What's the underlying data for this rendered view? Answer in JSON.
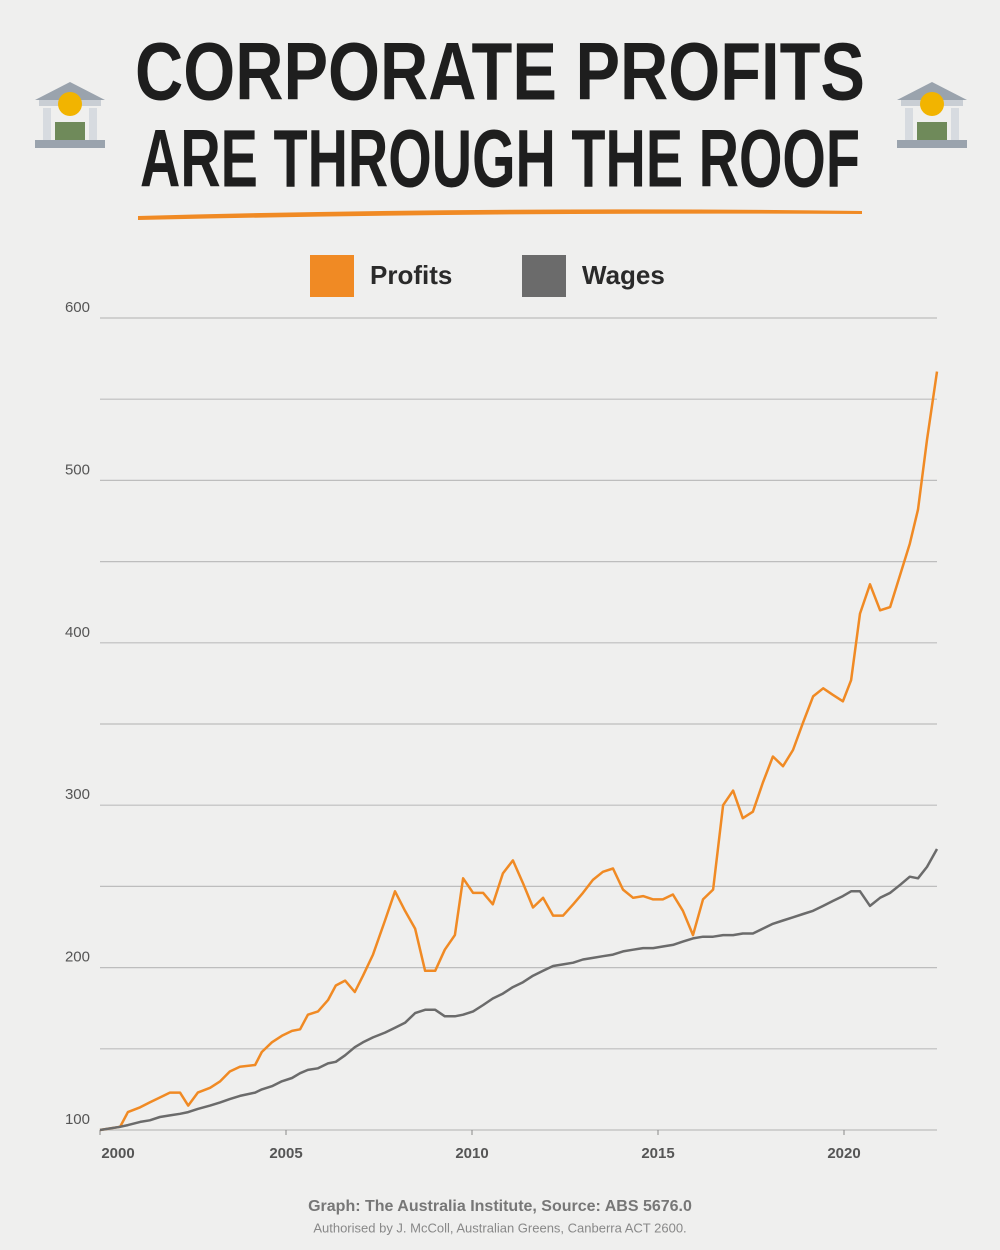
{
  "chart_data": {
    "type": "line",
    "title": [
      "CORPORATE PROFITS",
      "ARE THROUGH THE ROOF"
    ],
    "source": "Graph: The Australia Institute, Source: ABS 5676.0",
    "authorisation": "Authorised by J. McColl, Australian Greens, Canberra ACT 2600.",
    "x": [
      2000.0,
      2000.54,
      2000.75,
      2001.08,
      2001.34,
      2001.61,
      2001.88,
      2002.15,
      2002.37,
      2002.63,
      2002.96,
      2003.23,
      2003.49,
      2003.76,
      2004.17,
      2004.35,
      2004.62,
      2004.89,
      2005.16,
      2005.38,
      2005.59,
      2005.86,
      2006.13,
      2006.34,
      2006.59,
      2006.85,
      2007.07,
      2007.34,
      2007.66,
      2007.93,
      2008.2,
      2008.47,
      2008.74,
      2009.01,
      2009.27,
      2009.54,
      2009.76,
      2010.03,
      2010.3,
      2010.56,
      2010.83,
      2011.1,
      2011.37,
      2011.64,
      2011.91,
      2012.18,
      2012.45,
      2012.72,
      2012.98,
      2013.25,
      2013.52,
      2013.79,
      2014.06,
      2014.33,
      2014.6,
      2014.87,
      2015.13,
      2015.4,
      2015.67,
      2015.94,
      2016.21,
      2016.48,
      2016.75,
      2017.02,
      2017.28,
      2017.55,
      2017.82,
      2018.09,
      2018.36,
      2018.63,
      2018.9,
      2019.17,
      2019.44,
      2019.7,
      2019.97,
      2020.19,
      2020.43,
      2020.7,
      2020.97,
      2021.24,
      2021.51,
      2021.77,
      2021.99,
      2022.23,
      2022.5
    ],
    "series": [
      {
        "name": "Profits",
        "color": "#f08a24",
        "values": [
          100,
          102,
          111,
          114,
          117,
          120,
          123,
          123,
          115,
          123,
          126,
          130,
          136,
          139,
          140,
          148,
          154,
          158,
          161,
          162,
          171,
          173,
          180,
          189,
          192,
          185,
          195,
          208,
          229,
          247,
          235,
          224,
          198,
          198,
          211,
          220,
          255,
          246,
          246,
          239,
          258,
          266,
          252,
          237,
          243,
          232,
          232,
          239,
          246,
          254,
          259,
          261,
          248,
          243,
          244,
          242,
          242,
          245,
          235,
          220,
          242,
          248,
          300,
          309,
          292,
          296,
          314,
          330,
          324,
          334,
          351,
          367,
          372,
          368,
          364,
          377,
          418,
          436,
          420,
          422,
          442,
          461,
          482,
          525,
          567
        ]
      },
      {
        "name": "Wages",
        "color": "#6b6b6b",
        "values": [
          100,
          102,
          103,
          105,
          106,
          108,
          109,
          110,
          111,
          113,
          115,
          117,
          119,
          121,
          123,
          125,
          127,
          130,
          132,
          135,
          137,
          138,
          141,
          142,
          146,
          151,
          154,
          157,
          160,
          163,
          166,
          172,
          174,
          174,
          170,
          170,
          171,
          173,
          177,
          181,
          184,
          188,
          191,
          195,
          198,
          201,
          202,
          203,
          205,
          206,
          207,
          208,
          210,
          211,
          212,
          212,
          213,
          214,
          216,
          218,
          219,
          219,
          220,
          220,
          221,
          221,
          224,
          227,
          229,
          231,
          233,
          235,
          238,
          241,
          244,
          247,
          247,
          238,
          243,
          246,
          251,
          256,
          255,
          262,
          273
        ]
      }
    ],
    "xlim": [
      2000,
      2022.5
    ],
    "xticks": [
      2000,
      2005,
      2010,
      2015,
      2020
    ],
    "ylim": [
      100,
      600
    ],
    "yticks": [
      100,
      200,
      300,
      400,
      500,
      600
    ],
    "minor_yticks": [
      150,
      250,
      350,
      450,
      550
    ],
    "grid": true
  }
}
